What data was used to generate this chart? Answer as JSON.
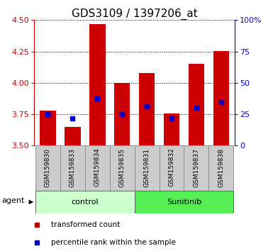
{
  "title": "GDS3109 / 1397206_at",
  "samples": [
    "GSM159830",
    "GSM159833",
    "GSM159834",
    "GSM159835",
    "GSM159831",
    "GSM159832",
    "GSM159837",
    "GSM159838"
  ],
  "bar_tops": [
    3.78,
    3.65,
    4.47,
    4.0,
    4.08,
    3.755,
    4.15,
    4.255
  ],
  "bar_bottoms": [
    3.5,
    3.5,
    3.5,
    3.5,
    3.5,
    3.5,
    3.5,
    3.5
  ],
  "blue_markers": [
    3.748,
    3.718,
    3.872,
    3.752,
    3.815,
    3.718,
    3.8,
    3.845
  ],
  "ylim_left": [
    3.5,
    4.5
  ],
  "ylim_right": [
    0,
    100
  ],
  "yticks_left": [
    3.5,
    3.75,
    4.0,
    4.25,
    4.5
  ],
  "yticks_right": [
    0,
    25,
    50,
    75,
    100
  ],
  "ytick_labels_right": [
    "0",
    "25",
    "50",
    "75",
    "100%"
  ],
  "bar_color": "#cc0000",
  "blue_color": "#0000cc",
  "group1_label": "control",
  "group2_label": "Sunitinib",
  "group1_indices": [
    0,
    1,
    2,
    3
  ],
  "group2_indices": [
    4,
    5,
    6,
    7
  ],
  "group1_color": "#ccffcc",
  "group2_color": "#55ee55",
  "agent_label": "agent",
  "legend_bar_label": "transformed count",
  "legend_marker_label": "percentile rank within the sample",
  "label_box_color": "#cccccc",
  "title_fontsize": 11,
  "tick_fontsize": 8,
  "sample_fontsize": 6.5,
  "group_fontsize": 8,
  "legend_fontsize": 7.5,
  "agent_fontsize": 8
}
